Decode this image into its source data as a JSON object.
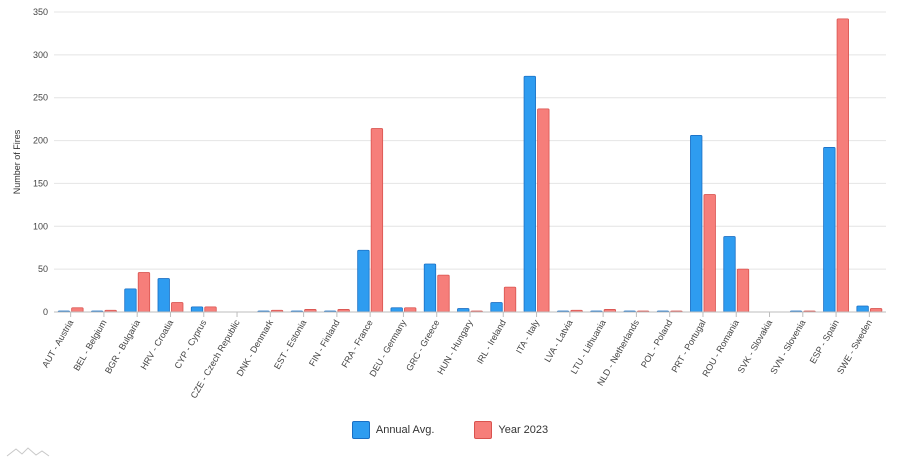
{
  "chart_data": {
    "type": "bar",
    "ylabel": "Number of Fires",
    "ylim": [
      0,
      350
    ],
    "yticks": [
      0,
      50,
      100,
      150,
      200,
      250,
      300,
      350
    ],
    "grid": true,
    "legend_position": "bottom-center",
    "categories": [
      "AUT - Austria",
      "BEL - Belgium",
      "BGR - Bulgaria",
      "HRV - Croatia",
      "CYP - Cyprus",
      "CZE - Czech Republic",
      "DNK - Denmark",
      "EST - Estonia",
      "FIN - Finland",
      "FRA - France",
      "DEU - Germany",
      "GRC - Greece",
      "HUN - Hungary",
      "IRL - Ireland",
      "ITA - Italy",
      "LVA - Latvia",
      "LTU - Lithuania",
      "NLD - Netherlands",
      "POL - Poland",
      "PRT - Portugal",
      "ROU - Romania",
      "SVK - Slovakia",
      "SVN - Slovenia",
      "ESP - Spain",
      "SWE - Sweden"
    ],
    "series": [
      {
        "name": "Annual Avg.",
        "color": "#2e9cf0",
        "stroke": "#1a6fc4",
        "values": [
          1,
          1,
          27,
          39,
          6,
          0,
          1,
          1,
          1,
          72,
          5,
          56,
          4,
          11,
          275,
          1,
          1,
          1,
          1,
          206,
          88,
          0,
          1,
          192,
          7
        ]
      },
      {
        "name": "Year 2023",
        "color": "#f67e7a",
        "stroke": "#d9534f",
        "values": [
          5,
          2,
          46,
          11,
          6,
          0,
          2,
          3,
          3,
          214,
          5,
          43,
          1,
          29,
          237,
          2,
          3,
          1,
          1,
          137,
          50,
          0,
          1,
          342,
          4
        ]
      }
    ]
  }
}
